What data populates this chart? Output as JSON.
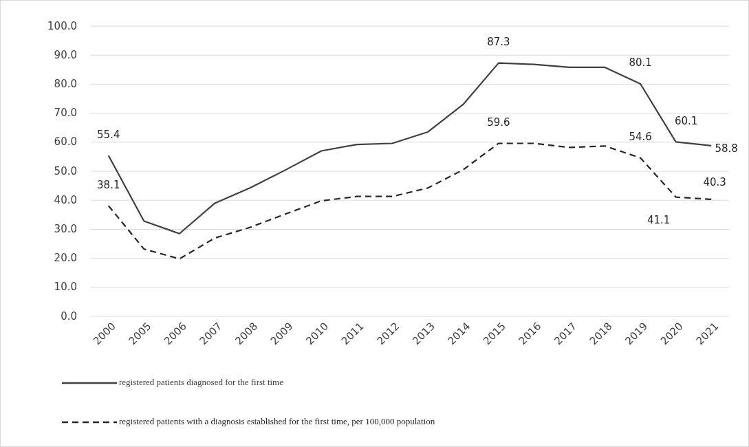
{
  "chart_data": {
    "type": "line",
    "categories": [
      "2000",
      "2005",
      "2006",
      "2007",
      "2008",
      "2009",
      "2010",
      "2011",
      "2012",
      "2013",
      "2014",
      "2015",
      "2016",
      "2017",
      "2018",
      "2019",
      "2020",
      "2021"
    ],
    "series": [
      {
        "name": "registered patients diagnosed for the first time",
        "color": "#404040",
        "line_style": "solid",
        "values": [
          55.4,
          32.8,
          28.5,
          39.0,
          44.3,
          50.5,
          57.0,
          59.2,
          59.6,
          63.5,
          73.0,
          87.3,
          86.8,
          85.8,
          85.8,
          80.1,
          60.1,
          58.8
        ],
        "value_labels": [
          "55.4",
          null,
          null,
          null,
          null,
          null,
          null,
          null,
          null,
          null,
          null,
          "87.3",
          null,
          null,
          null,
          "80.1",
          "60.1",
          "58.8"
        ]
      },
      {
        "name": "registered patients with a diagnosis established for the first time, per 100,000 population",
        "color": "#262626",
        "line_style": "dashed",
        "values": [
          38.1,
          23.2,
          19.8,
          27.0,
          30.7,
          35.3,
          39.8,
          41.3,
          41.3,
          44.2,
          50.5,
          59.6,
          59.6,
          58.2,
          58.7,
          54.6,
          41.1,
          40.3
        ],
        "value_labels": [
          "38.1",
          null,
          null,
          null,
          null,
          null,
          null,
          null,
          null,
          null,
          null,
          "59.6",
          null,
          null,
          null,
          "54.6",
          "41.1",
          "40.3"
        ]
      }
    ],
    "ylim": [
      0,
      100
    ],
    "yticks": [
      {
        "value": 0,
        "label": "0.0"
      },
      {
        "value": 10,
        "label": "10.0"
      },
      {
        "value": 20,
        "label": "20.0"
      },
      {
        "value": 30,
        "label": "30.0"
      },
      {
        "value": 40,
        "label": "40.0"
      },
      {
        "value": 50,
        "label": "50.0"
      },
      {
        "value": 60,
        "label": "60.0"
      },
      {
        "value": 70,
        "label": "70.0"
      },
      {
        "value": 80,
        "label": "80.0"
      },
      {
        "value": 90,
        "label": "90.0"
      },
      {
        "value": 100,
        "label": "100.0"
      }
    ],
    "grid": "y",
    "legend": "bottom",
    "marker": "none"
  }
}
